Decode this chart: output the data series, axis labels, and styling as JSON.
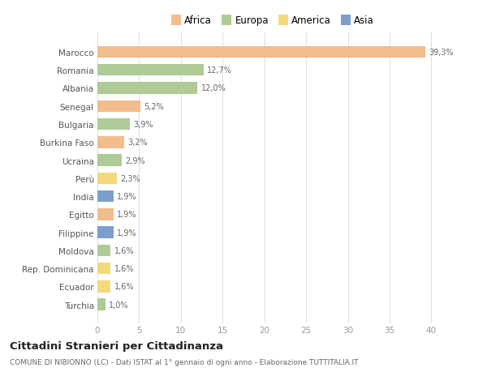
{
  "categories": [
    "Marocco",
    "Romania",
    "Albania",
    "Senegal",
    "Bulgaria",
    "Burkina Faso",
    "Ucraina",
    "Perù",
    "India",
    "Egitto",
    "Filippine",
    "Moldova",
    "Rep. Dominicana",
    "Ecuador",
    "Turchia"
  ],
  "values": [
    39.3,
    12.7,
    12.0,
    5.2,
    3.9,
    3.2,
    2.9,
    2.3,
    1.9,
    1.9,
    1.9,
    1.6,
    1.6,
    1.6,
    1.0
  ],
  "labels": [
    "39,3%",
    "12,7%",
    "12,0%",
    "5,2%",
    "3,9%",
    "3,2%",
    "2,9%",
    "2,3%",
    "1,9%",
    "1,9%",
    "1,9%",
    "1,6%",
    "1,6%",
    "1,6%",
    "1,0%"
  ],
  "colors": [
    "#F2BC8D",
    "#AECA96",
    "#AECA96",
    "#F2BC8D",
    "#AECA96",
    "#F2BC8D",
    "#AECA96",
    "#F5D87A",
    "#7B9FCC",
    "#F2BC8D",
    "#7B9FCC",
    "#AECA96",
    "#F5D87A",
    "#F5D87A",
    "#AECA96"
  ],
  "legend_labels": [
    "Africa",
    "Europa",
    "America",
    "Asia"
  ],
  "legend_colors": [
    "#F2BC8D",
    "#AECA96",
    "#F5D87A",
    "#7B9FCC"
  ],
  "title": "Cittadini Stranieri per Cittadinanza",
  "subtitle": "COMUNE DI NIBIONNO (LC) - Dati ISTAT al 1° gennaio di ogni anno - Elaborazione TUTTITALIA.IT",
  "xlim": [
    0,
    42
  ],
  "xticks": [
    0,
    5,
    10,
    15,
    20,
    25,
    30,
    35,
    40
  ],
  "background_color": "#ffffff",
  "grid_color": "#e0e0e0"
}
